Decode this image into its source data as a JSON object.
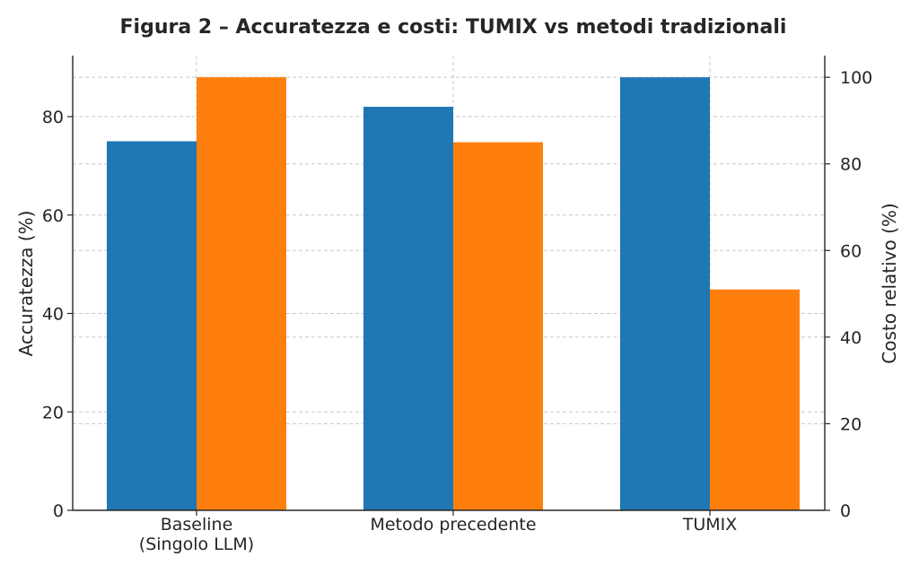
{
  "chart_data": {
    "type": "bar",
    "title": "Figura 2 – Accuratezza e costi: TUMIX vs metodi tradizionali",
    "categories": [
      [
        "Baseline",
        "(Singolo LLM)"
      ],
      [
        "Metodo precedente"
      ],
      [
        "TUMIX"
      ]
    ],
    "series": [
      {
        "values": [
          75,
          82,
          88
        ],
        "color": "#1f77b4",
        "axis": "left"
      },
      {
        "values": [
          100,
          85,
          51
        ],
        "color": "#ff7f0e",
        "axis": "right"
      }
    ],
    "ylabel": "Accuratezza (%)",
    "y2label": "Costo relativo (%)",
    "ylim": [
      0,
      92.4
    ],
    "y2lim": [
      0,
      105
    ],
    "yticks": [
      0,
      20,
      40,
      60,
      80
    ],
    "y2ticks": [
      0,
      20,
      40,
      60,
      80,
      100
    ],
    "grid": true
  }
}
